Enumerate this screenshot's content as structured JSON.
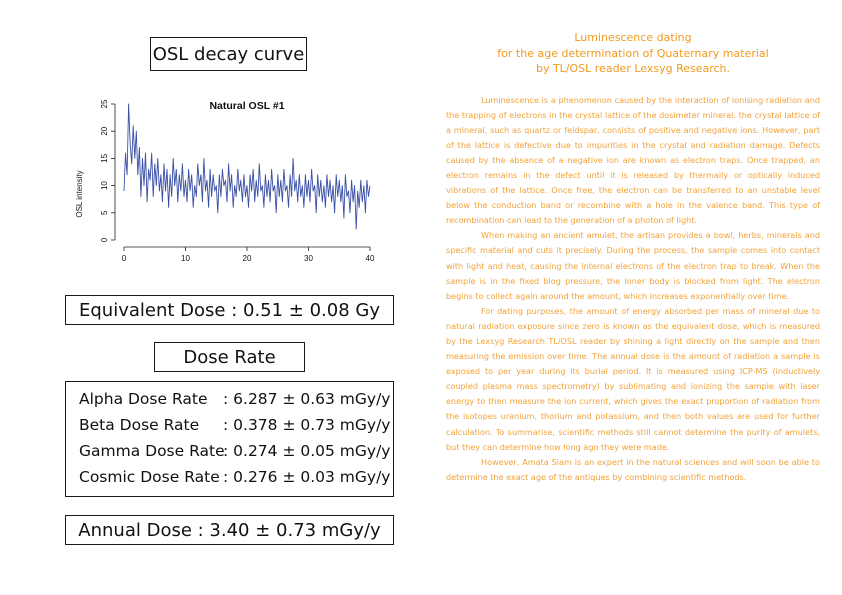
{
  "left_panel": {
    "title": "OSL decay curve",
    "equivalent_dose": "Equivalent Dose : 0.51 ± 0.08 Gy",
    "dose_rate_title": "Dose Rate",
    "rates": [
      {
        "label": "Alpha Dose Rate",
        "value": ": 6.287 ± 0.63 mGy/y"
      },
      {
        "label": "Beta Dose Rate",
        "value": ": 0.378 ± 0.73 mGy/y"
      },
      {
        "label": "Gamma Dose Rate",
        "value": ": 0.274 ± 0.05 mGy/y"
      },
      {
        "label": "Cosmic Dose Rate",
        "value": ": 0.276 ± 0.03 mGy/y"
      }
    ],
    "annual_dose": "Annual Dose : 3.40 ± 0.73 mGy/y"
  },
  "chart_data": {
    "type": "line",
    "title": "Natural OSL #1",
    "xlabel": "",
    "ylabel": "OSL intensity",
    "xlim": [
      0,
      40
    ],
    "ylim": [
      0,
      25
    ],
    "xticks": [
      "0",
      "10",
      "20",
      "30",
      "40"
    ],
    "yticks": [
      "0",
      "5",
      "10",
      "15",
      "20",
      "25"
    ],
    "grid": false,
    "color": "#3a4fa6",
    "series": [
      {
        "values": [
          [
            0,
            9
          ],
          [
            0.25,
            16
          ],
          [
            0.5,
            12
          ],
          [
            0.75,
            25
          ],
          [
            1,
            18
          ],
          [
            1.25,
            14
          ],
          [
            1.5,
            21
          ],
          [
            1.75,
            15
          ],
          [
            2,
            20
          ],
          [
            2.25,
            12
          ],
          [
            2.5,
            17
          ],
          [
            2.75,
            8
          ],
          [
            3,
            15
          ],
          [
            3.25,
            10
          ],
          [
            3.5,
            16
          ],
          [
            3.75,
            7
          ],
          [
            4,
            13
          ],
          [
            4.25,
            11
          ],
          [
            4.5,
            16
          ],
          [
            4.75,
            8
          ],
          [
            5,
            14
          ],
          [
            5.25,
            10
          ],
          [
            5.5,
            15
          ],
          [
            5.75,
            9
          ],
          [
            6,
            12
          ],
          [
            6.25,
            7
          ],
          [
            6.5,
            14
          ],
          [
            6.75,
            9
          ],
          [
            7,
            13
          ],
          [
            7.25,
            6
          ],
          [
            7.5,
            12
          ],
          [
            7.75,
            8
          ],
          [
            8,
            15
          ],
          [
            8.25,
            10
          ],
          [
            8.5,
            13
          ],
          [
            8.75,
            7
          ],
          [
            9,
            12
          ],
          [
            9.25,
            9
          ],
          [
            9.5,
            14
          ],
          [
            9.75,
            8
          ],
          [
            10,
            11
          ],
          [
            10.25,
            7
          ],
          [
            10.5,
            13
          ],
          [
            10.75,
            9
          ],
          [
            11,
            12
          ],
          [
            11.25,
            6
          ],
          [
            11.5,
            10
          ],
          [
            11.75,
            8
          ],
          [
            12,
            14
          ],
          [
            12.25,
            10
          ],
          [
            12.5,
            12
          ],
          [
            12.75,
            7
          ],
          [
            13,
            15
          ],
          [
            13.25,
            9
          ],
          [
            13.5,
            11
          ],
          [
            13.75,
            6
          ],
          [
            14,
            13
          ],
          [
            14.25,
            8
          ],
          [
            14.5,
            12
          ],
          [
            14.75,
            9
          ],
          [
            15,
            10
          ],
          [
            15.25,
            5
          ],
          [
            15.5,
            12
          ],
          [
            15.75,
            8
          ],
          [
            16,
            13
          ],
          [
            16.25,
            10
          ],
          [
            16.5,
            11
          ],
          [
            16.75,
            7
          ],
          [
            17,
            14
          ],
          [
            17.25,
            9
          ],
          [
            17.5,
            12
          ],
          [
            17.75,
            6
          ],
          [
            18,
            10
          ],
          [
            18.25,
            8
          ],
          [
            18.5,
            13
          ],
          [
            18.75,
            9
          ],
          [
            19,
            11
          ],
          [
            19.25,
            7
          ],
          [
            19.5,
            12
          ],
          [
            19.75,
            8
          ],
          [
            20,
            10
          ],
          [
            20.25,
            6
          ],
          [
            20.5,
            12
          ],
          [
            20.75,
            9
          ],
          [
            21,
            13
          ],
          [
            21.25,
            7
          ],
          [
            21.5,
            11
          ],
          [
            21.75,
            8
          ],
          [
            22,
            14
          ],
          [
            22.25,
            9
          ],
          [
            22.5,
            10
          ],
          [
            22.75,
            6
          ],
          [
            23,
            12
          ],
          [
            23.25,
            8
          ],
          [
            23.5,
            11
          ],
          [
            23.75,
            7
          ],
          [
            24,
            13
          ],
          [
            24.25,
            9
          ],
          [
            24.5,
            10
          ],
          [
            24.75,
            5
          ],
          [
            25,
            12
          ],
          [
            25.25,
            8
          ],
          [
            25.5,
            11
          ],
          [
            25.75,
            7
          ],
          [
            26,
            13
          ],
          [
            26.25,
            9
          ],
          [
            26.5,
            10
          ],
          [
            26.75,
            6
          ],
          [
            27,
            12
          ],
          [
            27.25,
            8
          ],
          [
            27.5,
            15
          ],
          [
            27.75,
            9
          ],
          [
            28,
            11
          ],
          [
            28.25,
            7
          ],
          [
            28.5,
            12
          ],
          [
            28.75,
            8
          ],
          [
            29,
            10
          ],
          [
            29.25,
            6
          ],
          [
            29.5,
            12
          ],
          [
            29.75,
            8
          ],
          [
            30,
            11
          ],
          [
            30.25,
            7
          ],
          [
            30.5,
            13
          ],
          [
            30.75,
            9
          ],
          [
            31,
            10
          ],
          [
            31.25,
            5
          ],
          [
            31.5,
            12
          ],
          [
            31.75,
            8
          ],
          [
            32,
            11
          ],
          [
            32.25,
            7
          ],
          [
            32.5,
            10
          ],
          [
            32.75,
            6
          ],
          [
            33,
            12
          ],
          [
            33.25,
            8
          ],
          [
            33.5,
            11
          ],
          [
            33.75,
            7
          ],
          [
            34,
            10
          ],
          [
            34.25,
            5
          ],
          [
            34.5,
            12
          ],
          [
            34.75,
            8
          ],
          [
            35,
            11
          ],
          [
            35.25,
            7
          ],
          [
            35.5,
            10
          ],
          [
            35.75,
            4
          ],
          [
            36,
            12
          ],
          [
            36.25,
            8
          ],
          [
            36.5,
            9
          ],
          [
            36.75,
            5
          ],
          [
            37,
            11
          ],
          [
            37.25,
            7
          ],
          [
            37.5,
            10
          ],
          [
            37.75,
            2
          ],
          [
            38,
            9
          ],
          [
            38.25,
            6
          ],
          [
            38.5,
            11
          ],
          [
            38.75,
            7
          ],
          [
            39,
            10
          ],
          [
            39.25,
            5
          ],
          [
            39.5,
            11
          ],
          [
            39.75,
            8
          ],
          [
            40,
            10
          ]
        ]
      }
    ]
  },
  "article": {
    "heading_lines": [
      "Luminescence dating",
      "for the age determination of Quaternary material",
      "by TL/OSL reader Lexsyg Research."
    ],
    "paragraphs": [
      "Luminescence is a phenomenon caused by the interaction of ionising radiation and the trapping of electrons in the crystal lattice of the dosimeter mineral. the crystal lattice of a mineral, such as quartz or feldspar, consists of positive and negative ions. However, part of the lattice is defective due to impurities in the crystal and radiation damage. Defects caused by the absence of a negative ion are known as electron traps. Once trapped, an electron remains in the defect until it is released by thermally or optically induced vibrations of the lattice. Once free, the electron can be transferred to an unstable level below the conduction band or recombine with a hole in the valence band. This type of recombination can lead to the generation of a photon of light.",
      "When making an ancient amulet, the artisan provides a bowl, herbs, minerals and specific material and cuts it precisely. During the process, the sample comes into contact with light and heat, causing the internal electrons of the electron trap to break. When the sample is in the fixed blog pressure, the inner body is blocked from light. The electron begins to collect again around the amount, which increases exponentially over time.",
      "For dating purposes, the amount of energy absorbed per mass of mineral due to natural radiation exposure since zero is known as the equivalent dose, which is measured by the Lexsyg Research TL/OSL reader by shining a light directly on the sample and then measuring the emission over time. The annual dose is the amount of radiation a sample is exposed to per year during its burial period. It is measured using ICP-MS (inductively coupled plasma mass spectrometry) by sublimating and ionizing the sample with laser energy to then measure the ion current, which gives the exact proportion of radiation from the isotopes uranium, thorium and potassium, and then both values are used for further calculation. To summarise, scientific methods still cannot determine the purity of amulets, but they can determine how long ago they were made.",
      "However, Amata Siam is an expert in the natural sciences and will soon be able to determine the exact age of the antiques by combining scientific methods."
    ]
  }
}
